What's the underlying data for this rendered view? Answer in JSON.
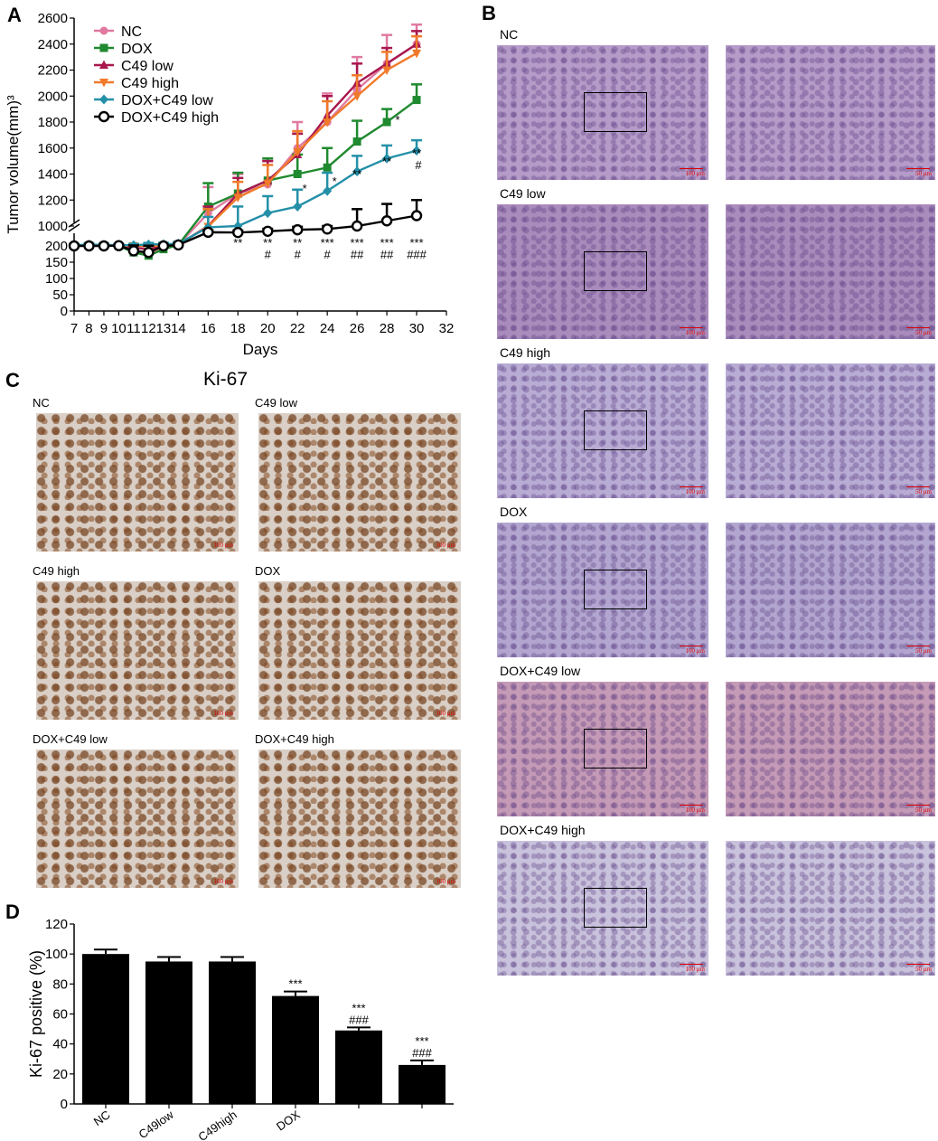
{
  "panels": {
    "A": {
      "letter": "A",
      "chart_data": {
        "type": "line",
        "xlabel": "Days",
        "ylabel": "Tumor volume(mm)³",
        "x": [
          7,
          8,
          9,
          10,
          11,
          12,
          13,
          14,
          16,
          18,
          20,
          22,
          24,
          26,
          28,
          30
        ],
        "x_ticks": [
          "7",
          "8",
          "9",
          "10",
          "11",
          "12",
          "13",
          "14",
          "16",
          "18",
          "20",
          "22",
          "24",
          "26",
          "28",
          "30",
          "32"
        ],
        "y_ticks_low": [
          "0",
          "50",
          "100",
          "150",
          "200"
        ],
        "y_ticks_high": [
          "1000",
          "1200",
          "1400",
          "1600",
          "1800",
          "2000",
          "2200",
          "2400",
          "2600"
        ],
        "axis_break": true,
        "legend_position": "top-left",
        "series": [
          {
            "name": "NC",
            "color": "#e07aa0",
            "marker": "circle",
            "values": [
              200,
              210,
              205,
              210,
              185,
              175,
              195,
              240,
              1100,
              1250,
              1320,
              1600,
              1800,
              2050,
              2250,
              2400
            ],
            "err": [
              40,
              60,
              50,
              55,
              40,
              35,
              40,
              70,
              200,
              150,
              180,
              200,
              220,
              250,
              220,
              150
            ]
          },
          {
            "name": "DOX",
            "color": "#1f8a2f",
            "marker": "square",
            "values": [
              200,
              215,
              210,
              205,
              180,
              170,
              190,
              240,
              1150,
              1250,
              1350,
              1400,
              1450,
              1650,
              1800,
              1970
            ],
            "err": [
              40,
              45,
              45,
              40,
              35,
              30,
              40,
              70,
              180,
              160,
              170,
              150,
              150,
              160,
              100,
              120
            ]
          },
          {
            "name": "C49 low",
            "color": "#a8174e",
            "marker": "triangle-up",
            "values": [
              210,
              220,
              210,
              220,
              195,
              190,
              205,
              260,
              1000,
              1250,
              1350,
              1550,
              1850,
              2100,
              2250,
              2400
            ],
            "err": [
              40,
              50,
              45,
              45,
              40,
              35,
              40,
              70,
              150,
              120,
              150,
              160,
              150,
              150,
              120,
              100
            ]
          },
          {
            "name": "C49 high",
            "color": "#f07a2a",
            "marker": "triangle-down",
            "values": [
              215,
              225,
              220,
              215,
              205,
              200,
              210,
              255,
              980,
              1220,
              1330,
              1570,
              1800,
              2000,
              2200,
              2330
            ],
            "err": [
              40,
              50,
              45,
              40,
              40,
              35,
              40,
              70,
              150,
              120,
              140,
              160,
              160,
              160,
              140,
              130
            ]
          },
          {
            "name": "DOX+C49 low",
            "color": "#2490a8",
            "marker": "diamond",
            "values": [
              230,
              250,
              240,
              230,
              230,
              260,
              270,
              290,
              950,
              1000,
              1100,
              1150,
              1270,
              1420,
              1520,
              1580
            ],
            "err": [
              50,
              60,
              55,
              50,
              50,
              60,
              55,
              80,
              120,
              150,
              130,
              130,
              140,
              120,
              100,
              80
            ]
          },
          {
            "name": "DOX+C49 high",
            "color": "#000000",
            "marker": "open-circle",
            "values": [
              200,
              200,
              200,
              210,
              185,
              180,
              200,
              240,
              750,
              740,
              790,
              850,
              880,
              1000,
              1040,
              1080
            ],
            "err": [
              40,
              40,
              40,
              40,
              35,
              30,
              35,
              50,
              80,
              80,
              100,
              120,
              120,
              130,
              130,
              120
            ]
          }
        ],
        "annotations": [
          {
            "x": 18,
            "lines": [
              "**"
            ]
          },
          {
            "x": 20,
            "lines": [
              "**",
              "#"
            ]
          },
          {
            "x": 22,
            "lines": [
              "**",
              "#"
            ]
          },
          {
            "x": 24,
            "lines": [
              "***",
              "#"
            ]
          },
          {
            "x": 26,
            "lines": [
              "***",
              "##"
            ]
          },
          {
            "x": 28,
            "lines": [
              "***",
              "##"
            ]
          },
          {
            "x": 30,
            "lines": [
              "***",
              "###"
            ]
          }
        ],
        "annotations_cyan": [
          {
            "x": 22,
            "text": "*"
          },
          {
            "x": 24,
            "text": "*"
          },
          {
            "x": 26,
            "text": "**"
          },
          {
            "x": 28,
            "text": "**"
          },
          {
            "x": 30,
            "text": "**",
            "text2": "#"
          }
        ],
        "annotations_green": [
          {
            "x": 28,
            "text": "*"
          }
        ]
      }
    },
    "B": {
      "letter": "B",
      "rows": [
        {
          "label": "NC",
          "left_scale": "100 μm",
          "right_scale": "50 μm",
          "tint": "#b59bc8"
        },
        {
          "label": "C49 low",
          "left_scale": "100 μm",
          "right_scale": "50 μm",
          "tint": "#a98cbc"
        },
        {
          "label": "C49 high",
          "left_scale": "100 μm",
          "right_scale": "50 μm",
          "tint": "#b8acd4"
        },
        {
          "label": "DOX",
          "left_scale": "100 μm",
          "right_scale": "50 μm",
          "tint": "#b2a6d0"
        },
        {
          "label": "DOX+C49 low",
          "left_scale": "100 μm",
          "right_scale": "50 μm",
          "tint": "#c49ab6"
        },
        {
          "label": "DOX+C49 high",
          "left_scale": "100 μm",
          "right_scale": "50 μm",
          "tint": "#c9c2dc"
        }
      ]
    },
    "C": {
      "letter": "C",
      "title": "Ki-67",
      "images": [
        {
          "label": "NC",
          "scale": "100 μm"
        },
        {
          "label": "C49 low",
          "scale": "100 μm"
        },
        {
          "label": "C49 high",
          "scale": "100 μm"
        },
        {
          "label": "DOX",
          "scale": "100 μm"
        },
        {
          "label": "DOX+C49 low",
          "scale": "100 μm"
        },
        {
          "label": "DOX+C49 high",
          "scale": "100 μm"
        }
      ]
    },
    "D": {
      "letter": "D",
      "chart_data": {
        "type": "bar",
        "ylabel": "Ki-67 positive (%)",
        "ylim": [
          0,
          120
        ],
        "y_ticks": [
          "0",
          "20",
          "40",
          "60",
          "80",
          "100",
          "120"
        ],
        "categories": [
          "NC",
          "C49low",
          "C49high",
          "DOX",
          "",
          ""
        ],
        "values": [
          100,
          95,
          95,
          72,
          49,
          26
        ],
        "err": [
          3,
          3,
          3,
          3,
          2,
          3
        ],
        "labels_top": [
          [],
          [],
          [],
          [
            "***"
          ],
          [
            "***",
            "###"
          ],
          [
            "***",
            "###"
          ]
        ],
        "color": "#000000"
      }
    }
  }
}
